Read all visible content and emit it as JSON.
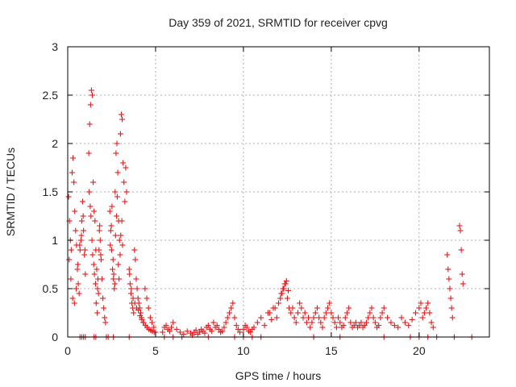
{
  "chart_data": {
    "type": "scatter",
    "title": "Day 359 of 2021, SRMTID for receiver cpvg",
    "xlabel": "GPS time / hours",
    "ylabel": "SRMTID / TECUs",
    "xlim": [
      0,
      24
    ],
    "ylim": [
      0,
      3
    ],
    "xticks": [
      0,
      5,
      10,
      15,
      20
    ],
    "yticks": [
      0,
      0.5,
      1,
      1.5,
      2,
      2.5,
      3
    ],
    "xtick_labels": [
      "0",
      "5",
      "10",
      "15",
      "20"
    ],
    "ytick_labels": [
      "0",
      "0.5",
      "1",
      "1.5",
      "2",
      "2.5",
      "3"
    ],
    "grid": true,
    "marker": "+",
    "color": "#e8191c",
    "series": [
      {
        "name": "SRMTID",
        "x": [
          0.05,
          0.1,
          0.15,
          0.2,
          0.25,
          0.3,
          0.35,
          0.4,
          0.45,
          0.5,
          0.55,
          0.6,
          0.65,
          0.7,
          0.75,
          0.8,
          0.85,
          0.9,
          0.95,
          1.0,
          0.08,
          0.18,
          0.28,
          0.38,
          0.48,
          0.58,
          0.68,
          0.78,
          0.88,
          0.98,
          1.2,
          1.25,
          1.3,
          1.35,
          1.4,
          1.45,
          1.5,
          1.55,
          1.6,
          1.65,
          1.7,
          1.75,
          1.8,
          1.85,
          1.9,
          1.95,
          2.0,
          2.05,
          2.1,
          2.15,
          1.22,
          1.28,
          1.32,
          1.38,
          1.42,
          1.48,
          1.52,
          1.58,
          1.62,
          1.68,
          1.72,
          1.78,
          1.82,
          1.88,
          2.4,
          2.45,
          2.5,
          2.55,
          2.6,
          2.65,
          2.7,
          2.75,
          2.8,
          2.85,
          2.9,
          2.95,
          3.0,
          3.05,
          3.1,
          3.15,
          3.2,
          3.25,
          3.3,
          3.35,
          2.42,
          2.48,
          2.52,
          2.58,
          2.62,
          2.68,
          2.72,
          2.78,
          2.82,
          2.88,
          2.92,
          2.98,
          3.02,
          3.08,
          3.12,
          3.5,
          3.55,
          3.6,
          3.65,
          3.7,
          3.75,
          3.8,
          3.85,
          3.9,
          3.95,
          4.0,
          4.05,
          4.1,
          4.15,
          4.2,
          4.3,
          4.4,
          4.5,
          4.6,
          4.7,
          4.8,
          4.9,
          5.0,
          3.52,
          3.62,
          3.72,
          3.82,
          3.92,
          4.02,
          4.12,
          4.22,
          4.32,
          4.42,
          4.52,
          4.62,
          4.72,
          4.82,
          4.92,
          5.4,
          5.5,
          5.6,
          5.7,
          5.8,
          5.9,
          6.0,
          6.2,
          6.4,
          6.6,
          6.8,
          7.0,
          7.1,
          7.2,
          7.3,
          7.4,
          7.5,
          7.6,
          7.7,
          7.8,
          7.9,
          8.0,
          8.1,
          8.2,
          8.3,
          8.4,
          8.5,
          8.6,
          8.7,
          8.8,
          8.9,
          9.0,
          9.1,
          9.2,
          9.3,
          9.4,
          9.5,
          9.6,
          9.7,
          9.8,
          10.0,
          10.1,
          10.2,
          10.3,
          10.4,
          10.5,
          10.6,
          10.8,
          11.0,
          11.2,
          11.4,
          11.6,
          11.8,
          12.0,
          12.1,
          12.2,
          12.3,
          12.4,
          12.5,
          12.6,
          12.7,
          12.8,
          12.9,
          13.0,
          13.1,
          13.2,
          13.3,
          13.4,
          13.5,
          13.6,
          13.7,
          13.8,
          13.9,
          14.0,
          11.5,
          11.7,
          11.9,
          12.15,
          12.25,
          12.35,
          12.45,
          12.55,
          14.1,
          14.2,
          14.3,
          14.4,
          14.5,
          14.6,
          14.7,
          14.8,
          14.9,
          15.0,
          15.1,
          15.2,
          15.3,
          15.4,
          15.5,
          15.6,
          15.7,
          15.8,
          15.9,
          16.0,
          16.1,
          16.2,
          16.3,
          16.4,
          16.5,
          16.6,
          16.7,
          16.8,
          16.9,
          17.0,
          17.1,
          17.2,
          17.3,
          17.4,
          17.5,
          17.6,
          17.7,
          17.8,
          17.9,
          18.0,
          18.2,
          18.4,
          18.6,
          18.8,
          19.0,
          19.2,
          19.4,
          19.6,
          19.8,
          20.0,
          20.1,
          20.2,
          20.3,
          20.4,
          20.5,
          20.6,
          20.7,
          20.8,
          21.6,
          21.65,
          21.7,
          21.75,
          21.8,
          21.85,
          21.9,
          22.3,
          22.35,
          22.4,
          22.45,
          22.5,
          0.7,
          0.8,
          0.9,
          1.0,
          1.5,
          1.6,
          2.2,
          2.3,
          2.6,
          3.5,
          5.5,
          6.0,
          6.5,
          8.0,
          9.5,
          10.0,
          10.5,
          11.0,
          14.0,
          15.5,
          18.0,
          19.5,
          20.0,
          20.5,
          21.0,
          22.0,
          23.0
        ],
        "y": [
          1.45,
          1.2,
          1.0,
          0.9,
          1.7,
          1.85,
          1.6,
          1.3,
          1.1,
          0.95,
          0.7,
          0.55,
          0.45,
          0.9,
          1.0,
          1.2,
          1.4,
          1.1,
          0.85,
          0.65,
          0.8,
          0.6,
          0.4,
          0.35,
          0.5,
          0.75,
          0.95,
          1.05,
          1.25,
          0.9,
          1.9,
          2.2,
          2.4,
          2.55,
          2.5,
          1.6,
          1.3,
          1.2,
          0.9,
          0.7,
          0.5,
          0.45,
          1.1,
          1.0,
          0.8,
          0.6,
          0.4,
          0.3,
          0.2,
          0.15,
          1.5,
          1.35,
          1.25,
          1.0,
          0.85,
          0.75,
          0.65,
          0.55,
          0.35,
          0.25,
          0.6,
          0.9,
          1.15,
          0.85,
          1.3,
          1.1,
          0.9,
          0.7,
          0.6,
          0.5,
          1.5,
          1.9,
          2.0,
          1.7,
          1.2,
          1.0,
          2.1,
          2.3,
          2.25,
          1.8,
          1.6,
          1.4,
          1.75,
          1.5,
          0.95,
          1.15,
          1.35,
          0.8,
          0.65,
          0.55,
          1.05,
          1.25,
          1.45,
          0.75,
          0.6,
          0.85,
          1.05,
          1.2,
          0.95,
          0.7,
          0.55,
          0.45,
          0.35,
          0.3,
          0.25,
          0.9,
          0.8,
          0.6,
          0.5,
          0.4,
          0.35,
          0.3,
          0.25,
          0.2,
          0.15,
          0.5,
          0.4,
          0.3,
          0.2,
          0.15,
          0.1,
          0.05,
          0.65,
          0.5,
          0.4,
          0.35,
          0.3,
          0.28,
          0.22,
          0.18,
          0.15,
          0.12,
          0.1,
          0.08,
          0.07,
          0.06,
          0.05,
          0.05,
          0.1,
          0.12,
          0.08,
          0.06,
          0.1,
          0.15,
          0.08,
          0.05,
          0.03,
          0.06,
          0.04,
          0.02,
          0.05,
          0.07,
          0.03,
          0.05,
          0.08,
          0.06,
          0.04,
          0.1,
          0.12,
          0.08,
          0.06,
          0.15,
          0.1,
          0.12,
          0.08,
          0.05,
          0.06,
          0.1,
          0.15,
          0.2,
          0.25,
          0.3,
          0.35,
          0.2,
          0.12,
          0.08,
          0.05,
          0.08,
          0.12,
          0.1,
          0.06,
          0.05,
          0.08,
          0.1,
          0.15,
          0.2,
          0.12,
          0.25,
          0.18,
          0.3,
          0.35,
          0.4,
          0.45,
          0.5,
          0.55,
          0.4,
          0.3,
          0.25,
          0.3,
          0.2,
          0.15,
          0.25,
          0.35,
          0.3,
          0.2,
          0.25,
          0.15,
          0.2,
          0.1,
          0.15,
          0.2,
          0.25,
          0.3,
          0.2,
          0.45,
          0.5,
          0.55,
          0.58,
          0.48,
          0.25,
          0.3,
          0.2,
          0.15,
          0.1,
          0.2,
          0.25,
          0.3,
          0.35,
          0.25,
          0.2,
          0.15,
          0.1,
          0.2,
          0.15,
          0.1,
          0.12,
          0.2,
          0.25,
          0.3,
          0.15,
          0.1,
          0.12,
          0.15,
          0.1,
          0.12,
          0.15,
          0.1,
          0.12,
          0.15,
          0.2,
          0.25,
          0.3,
          0.2,
          0.15,
          0.1,
          0.12,
          0.2,
          0.25,
          0.3,
          0.2,
          0.15,
          0.12,
          0.1,
          0.2,
          0.15,
          0.12,
          0.18,
          0.25,
          0.3,
          0.35,
          0.2,
          0.25,
          0.3,
          0.35,
          0.25,
          0.15,
          0.1,
          0.85,
          0.7,
          0.6,
          0.5,
          0.4,
          0.3,
          0.2,
          1.15,
          1.1,
          0.9,
          0.65,
          0.55,
          0.0,
          0.0,
          0.0,
          0.0,
          0.0,
          0.0,
          0.0,
          0.0,
          0.0,
          0.0,
          0.0,
          0.0,
          0.0,
          0.0,
          0.0,
          0.0,
          0.0,
          0.0,
          0.0,
          0.0,
          0.0,
          0.0,
          0.0,
          0.0,
          0.0,
          0.0,
          0.0
        ]
      }
    ]
  }
}
